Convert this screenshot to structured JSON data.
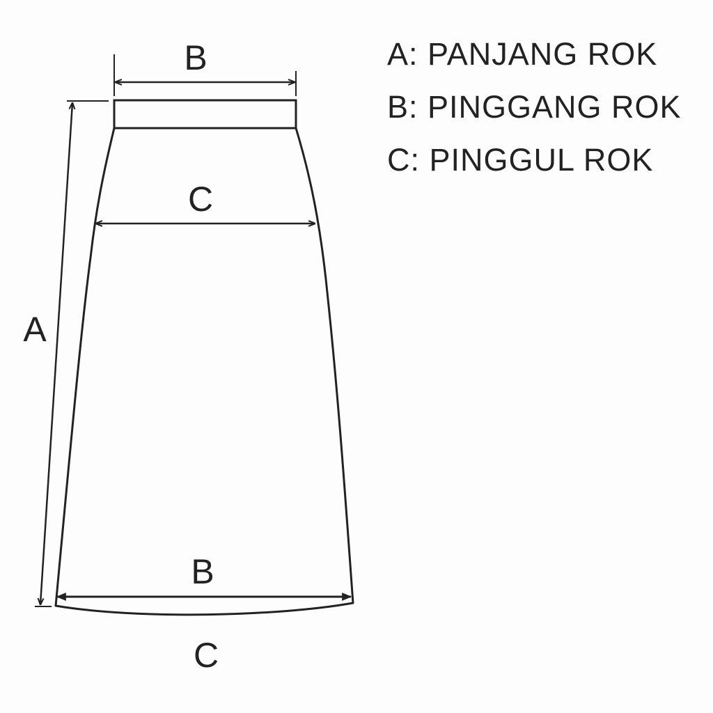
{
  "diagram": {
    "labels": {
      "top_waist": "B",
      "hip_line": "C",
      "hem_line": "B",
      "bottom_curve": "C",
      "length": "A"
    }
  },
  "legend": {
    "items": [
      "A: PANJANG ROK",
      "B: PINGGANG ROK",
      "C: PINGGUL ROK"
    ]
  },
  "colors": {
    "line": "#222222",
    "background": "#fdfdfd"
  }
}
